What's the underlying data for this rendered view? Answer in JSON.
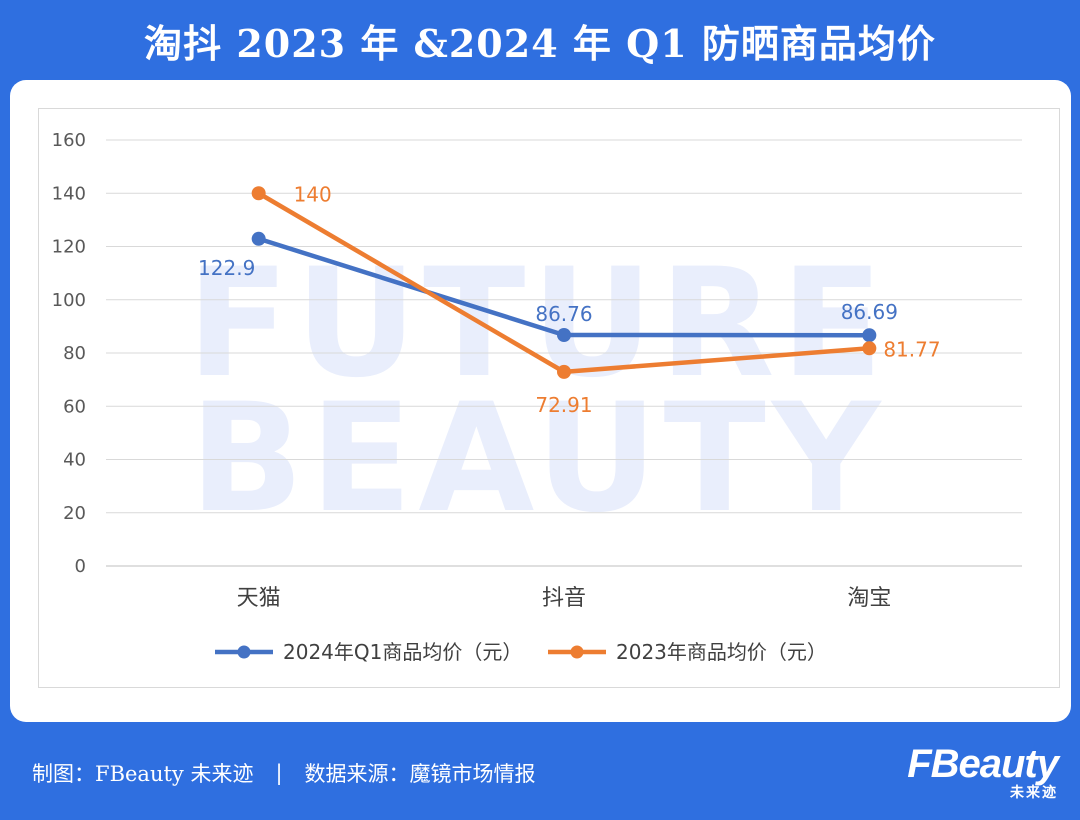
{
  "title": "淘抖 2023 年 &2024 年 Q1 防晒商品均价",
  "footer": {
    "credit": "制图：FBeauty 未来迹",
    "separator": "|",
    "source": "数据来源：魔镜市场情报"
  },
  "logo": {
    "name": "FBeauty",
    "subtitle": "未来迹"
  },
  "watermark": [
    "FUTURE",
    "BEAUTY"
  ],
  "colors": {
    "background": "#2f6fe0",
    "series2024": "#4472c4",
    "series2023": "#ed7d31"
  },
  "chart_data": {
    "type": "line",
    "categories": [
      "天猫",
      "抖音",
      "淘宝"
    ],
    "series": [
      {
        "name": "2024年Q1商品均价（元）",
        "values": [
          122.9,
          86.76,
          86.69
        ],
        "labels": [
          "122.9",
          "86.76",
          "86.69"
        ]
      },
      {
        "name": "2023年商品均价（元）",
        "values": [
          140,
          72.91,
          81.77
        ],
        "labels": [
          "140",
          "72.91",
          "81.77"
        ]
      }
    ],
    "ylim": [
      0,
      160
    ],
    "yticks": [
      "0",
      "20",
      "40",
      "60",
      "80",
      "100",
      "120",
      "140",
      "160"
    ],
    "grid": true,
    "legend_position": "bottom"
  }
}
